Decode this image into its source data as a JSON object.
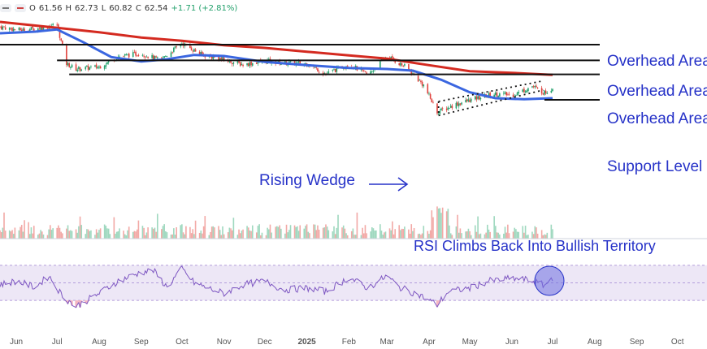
{
  "legend": {
    "open_label": "O",
    "open": "61.56",
    "high_label": "H",
    "high": "62.73",
    "low_label": "L",
    "low": "60.82",
    "close_label": "C",
    "close": "62.54",
    "change": "+1.71 (+2.81%)"
  },
  "colors": {
    "accent": "#2632c8",
    "sma_fast": "#3a66e0",
    "sma_slow": "#d42a20",
    "candle_up": "#22a06b",
    "candle_down": "#e0413c",
    "rsi_line": "#7e57c2",
    "rsi_band": "#ede7f6"
  },
  "annotations": {
    "overhead_1": "Overhead Area",
    "overhead_2": "Overhead Area",
    "overhead_3": "Overhead Area",
    "support": "Support Level",
    "wedge": "Rising Wedge",
    "rsi": "RSI Climbs Back Into Bullish Territory"
  },
  "chart_data": {
    "type": "line",
    "title": "",
    "x_tick_labels": [
      "Jun",
      "Jul",
      "Aug",
      "Sep",
      "Oct",
      "Nov",
      "Dec",
      "2025",
      "Feb",
      "Mar",
      "Apr",
      "May",
      "Jun",
      "Jul",
      "Aug",
      "Sep",
      "Oct"
    ],
    "price_range": [
      42,
      75
    ],
    "last_close": 62.54,
    "horizontal_levels": [
      {
        "label": "Overhead Area",
        "value": 70.5
      },
      {
        "label": "Overhead Area",
        "value": 67.6
      },
      {
        "label": "Overhead Area",
        "value": 65.0
      },
      {
        "label": "Support Level",
        "value": 60.3
      }
    ],
    "rising_wedge": {
      "upper": [
        {
          "date": "2025-04-08",
          "value": 60.0
        },
        {
          "date": "2025-06-24",
          "value": 63.8
        }
      ],
      "lower": [
        {
          "date": "2025-04-08",
          "value": 57.4
        },
        {
          "date": "2025-06-24",
          "value": 62.1
        }
      ]
    },
    "series": [
      {
        "name": "",
        "kind": "close",
        "points": [
          [
            "2024-05-20",
            73.8
          ],
          [
            "2024-06-03",
            73.2
          ],
          [
            "2024-06-17",
            73.5
          ],
          [
            "2024-07-01",
            74.2
          ],
          [
            "2024-07-08",
            67.0
          ],
          [
            "2024-07-15",
            66.0
          ],
          [
            "2024-08-01",
            66.4
          ],
          [
            "2024-08-15",
            68.3
          ],
          [
            "2024-09-01",
            68.9
          ],
          [
            "2024-09-15",
            67.6
          ],
          [
            "2024-10-01",
            70.8
          ],
          [
            "2024-10-15",
            68.7
          ],
          [
            "2024-11-01",
            67.7
          ],
          [
            "2024-11-15",
            66.8
          ],
          [
            "2024-12-01",
            67.5
          ],
          [
            "2024-12-15",
            67.1
          ],
          [
            "2025-01-01",
            67.0
          ],
          [
            "2025-01-15",
            65.1
          ],
          [
            "2025-02-01",
            66.9
          ],
          [
            "2025-02-15",
            64.9
          ],
          [
            "2025-03-01",
            68.4
          ],
          [
            "2025-03-15",
            66.3
          ],
          [
            "2025-03-28",
            63.0
          ],
          [
            "2025-04-07",
            58.0
          ],
          [
            "2025-04-21",
            59.5
          ],
          [
            "2025-05-05",
            60.5
          ],
          [
            "2025-05-19",
            61.4
          ],
          [
            "2025-06-02",
            61.2
          ],
          [
            "2025-06-16",
            62.8
          ],
          [
            "2025-06-25",
            61.6
          ],
          [
            "2025-07-01",
            62.54
          ]
        ]
      },
      {
        "name": "",
        "kind": "sma_fast",
        "points": [
          [
            "2024-05-20",
            72.6
          ],
          [
            "2024-06-15",
            72.9
          ],
          [
            "2024-07-01",
            73.3
          ],
          [
            "2024-07-20",
            71.0
          ],
          [
            "2024-08-10",
            68.2
          ],
          [
            "2024-09-01",
            67.4
          ],
          [
            "2024-09-20",
            67.8
          ],
          [
            "2024-10-10",
            68.6
          ],
          [
            "2024-11-01",
            68.4
          ],
          [
            "2024-12-01",
            67.3
          ],
          [
            "2025-01-01",
            66.7
          ],
          [
            "2025-02-01",
            66.2
          ],
          [
            "2025-03-01",
            66.0
          ],
          [
            "2025-03-20",
            65.7
          ],
          [
            "2025-04-10",
            64.0
          ],
          [
            "2025-05-01",
            61.7
          ],
          [
            "2025-05-20",
            60.6
          ],
          [
            "2025-06-10",
            60.4
          ],
          [
            "2025-07-01",
            60.6
          ]
        ]
      },
      {
        "name": "",
        "kind": "sma_slow",
        "points": [
          [
            "2024-05-20",
            74.7
          ],
          [
            "2024-07-01",
            73.6
          ],
          [
            "2024-08-01",
            72.8
          ],
          [
            "2024-09-01",
            71.8
          ],
          [
            "2024-10-01",
            71.2
          ],
          [
            "2024-11-01",
            70.4
          ],
          [
            "2024-12-01",
            69.9
          ],
          [
            "2025-01-01",
            69.2
          ],
          [
            "2025-02-01",
            68.5
          ],
          [
            "2025-03-01",
            67.9
          ],
          [
            "2025-04-01",
            66.7
          ],
          [
            "2025-05-01",
            65.6
          ],
          [
            "2025-06-01",
            65.3
          ],
          [
            "2025-07-01",
            64.9
          ]
        ]
      },
      {
        "name": "",
        "kind": "rsi",
        "points": [
          [
            "2024-05-20",
            48
          ],
          [
            "2024-06-01",
            52
          ],
          [
            "2024-06-15",
            45
          ],
          [
            "2024-06-25",
            58
          ],
          [
            "2024-07-05",
            35
          ],
          [
            "2024-07-15",
            23
          ],
          [
            "2024-08-01",
            38
          ],
          [
            "2024-08-15",
            52
          ],
          [
            "2024-09-01",
            62
          ],
          [
            "2024-09-10",
            64
          ],
          [
            "2024-09-20",
            45
          ],
          [
            "2024-10-01",
            66
          ],
          [
            "2024-10-10",
            50
          ],
          [
            "2024-10-20",
            44
          ],
          [
            "2024-11-01",
            38
          ],
          [
            "2024-11-15",
            48
          ],
          [
            "2024-12-01",
            52
          ],
          [
            "2024-12-15",
            42
          ],
          [
            "2025-01-01",
            44
          ],
          [
            "2025-01-15",
            40
          ],
          [
            "2025-02-01",
            56
          ],
          [
            "2025-02-15",
            44
          ],
          [
            "2025-03-01",
            58
          ],
          [
            "2025-03-10",
            45
          ],
          [
            "2025-03-25",
            36
          ],
          [
            "2025-04-07",
            25
          ],
          [
            "2025-04-15",
            40
          ],
          [
            "2025-05-01",
            44
          ],
          [
            "2025-05-15",
            52
          ],
          [
            "2025-06-01",
            55
          ],
          [
            "2025-06-15",
            53
          ],
          [
            "2025-06-25",
            47
          ],
          [
            "2025-07-01",
            56
          ]
        ]
      }
    ],
    "rsi_range": [
      20,
      80
    ],
    "rsi_band": [
      30,
      70
    ],
    "rsi_midline": 50
  }
}
